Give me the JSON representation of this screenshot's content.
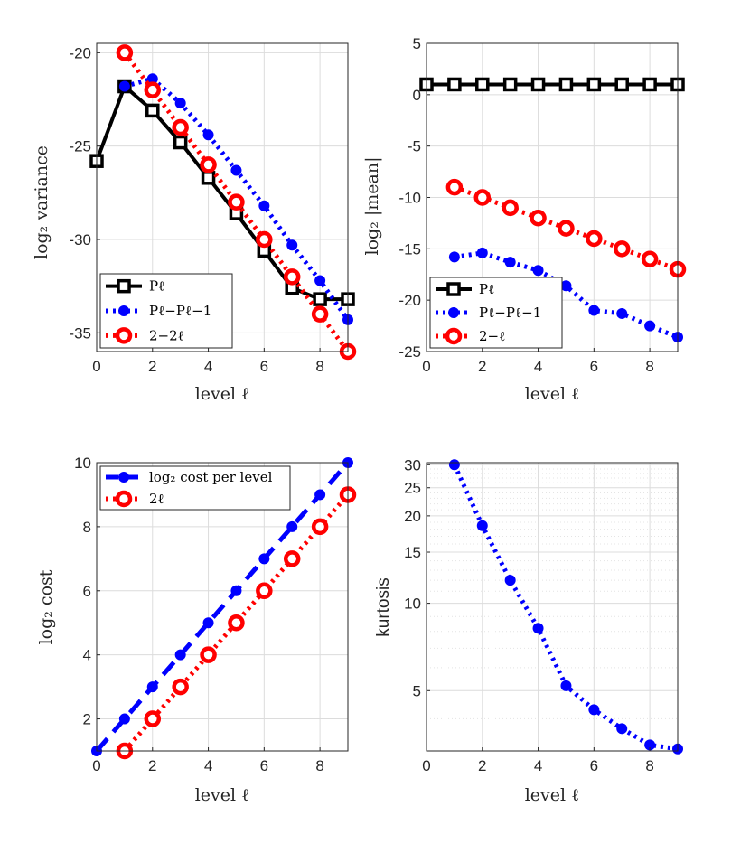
{
  "chart_data": [
    {
      "id": "variance",
      "type": "line",
      "xlabel": "level ℓ",
      "ylabel": "log₂ variance",
      "xlim": [
        0,
        9
      ],
      "ylim": [
        -36,
        -19.5
      ],
      "xticks": [
        0,
        2,
        4,
        6,
        8
      ],
      "yticks": [
        -35,
        -30,
        -25,
        -20
      ],
      "ytick_labels": [
        "-35",
        "-30",
        "-25",
        "-20"
      ],
      "legend_loc": "bottom-left",
      "series": [
        {
          "name": "P_ℓ",
          "legend": "Pℓ",
          "style": "solid",
          "marker": "square",
          "color": "#000000",
          "x": [
            0,
            1,
            2,
            3,
            4,
            5,
            6,
            7,
            8,
            9
          ],
          "y": [
            -25.8,
            -21.8,
            -23.1,
            -24.8,
            -26.7,
            -28.6,
            -30.6,
            -32.6,
            -33.2,
            -33.2
          ]
        },
        {
          "name": "P_ℓ − P_ℓ−1",
          "legend": "Pℓ−Pℓ−1",
          "style": "dotted",
          "marker": "circle",
          "color": "#0000ff",
          "x": [
            1,
            2,
            3,
            4,
            5,
            6,
            7,
            8,
            9
          ],
          "y": [
            -21.8,
            -21.4,
            -22.7,
            -24.4,
            -26.3,
            -28.2,
            -30.3,
            -32.2,
            -34.3
          ]
        },
        {
          "name": "2^(−2ℓ)",
          "legend": "2−2ℓ",
          "style": "dotted",
          "marker": "ring",
          "color": "#ff0000",
          "x": [
            1,
            2,
            3,
            4,
            5,
            6,
            7,
            8,
            9
          ],
          "y": [
            -20,
            -22,
            -24,
            -26,
            -28,
            -30,
            -32,
            -34,
            -36
          ]
        }
      ]
    },
    {
      "id": "mean",
      "type": "line",
      "xlabel": "level ℓ",
      "ylabel": "log₂ |mean|",
      "xlim": [
        0,
        9
      ],
      "ylim": [
        -25,
        5
      ],
      "xticks": [
        0,
        2,
        4,
        6,
        8
      ],
      "yticks": [
        -25,
        -20,
        -15,
        -10,
        -5,
        0,
        5
      ],
      "ytick_labels": [
        "-25",
        "-20",
        "-15",
        "-10",
        "-5",
        "0",
        "5"
      ],
      "legend_loc": "bottom-left",
      "series": [
        {
          "name": "P_ℓ",
          "legend": "Pℓ",
          "style": "solid",
          "marker": "square",
          "color": "#000000",
          "x": [
            0,
            1,
            2,
            3,
            4,
            5,
            6,
            7,
            8,
            9
          ],
          "y": [
            1,
            1,
            1,
            1,
            1,
            1,
            1,
            1,
            1,
            1
          ]
        },
        {
          "name": "P_ℓ − P_ℓ−1",
          "legend": "Pℓ−Pℓ−1",
          "style": "dotted",
          "marker": "circle",
          "color": "#0000ff",
          "x": [
            1,
            2,
            3,
            4,
            5,
            6,
            7,
            8,
            9
          ],
          "y": [
            -15.8,
            -15.4,
            -16.3,
            -17.1,
            -18.6,
            -21,
            -21.3,
            -22.5,
            -23.6
          ]
        },
        {
          "name": "2^(−ℓ)",
          "legend": "2−ℓ",
          "style": "dotted",
          "marker": "ring",
          "color": "#ff0000",
          "x": [
            1,
            2,
            3,
            4,
            5,
            6,
            7,
            8,
            9
          ],
          "y": [
            -9,
            -10,
            -11,
            -12,
            -13,
            -14,
            -15,
            -16,
            -17
          ]
        }
      ]
    },
    {
      "id": "cost",
      "type": "line",
      "xlabel": "level ℓ",
      "ylabel": "log₂ cost",
      "xlim": [
        0,
        9
      ],
      "ylim": [
        1,
        10
      ],
      "xticks": [
        0,
        2,
        4,
        6,
        8
      ],
      "yticks": [
        2,
        4,
        6,
        8,
        10
      ],
      "ytick_labels": [
        "2",
        "4",
        "6",
        "8",
        "10"
      ],
      "legend_loc": "top-left",
      "series": [
        {
          "name": "log₂ cost per level",
          "legend": "log₂ cost per level",
          "style": "dashed",
          "marker": "circle",
          "color": "#0000ff",
          "x": [
            0,
            1,
            2,
            3,
            4,
            5,
            6,
            7,
            8,
            9
          ],
          "y": [
            1,
            2,
            3,
            4,
            5,
            6,
            7,
            8,
            9,
            10
          ]
        },
        {
          "name": "2^ℓ",
          "legend": "2ℓ",
          "style": "dotted",
          "marker": "ring",
          "color": "#ff0000",
          "x": [
            1,
            2,
            3,
            4,
            5,
            6,
            7,
            8,
            9
          ],
          "y": [
            1,
            2,
            3,
            4,
            5,
            6,
            7,
            8,
            9
          ]
        }
      ]
    },
    {
      "id": "kurtosis",
      "type": "line",
      "xlabel": "level ℓ",
      "ylabel": "kurtosis",
      "xscale": "linear",
      "yscale": "log",
      "xlim": [
        0,
        9
      ],
      "ylim": [
        3.1,
        30.5
      ],
      "xticks": [
        0,
        2,
        4,
        6,
        8
      ],
      "yticks": [
        5,
        10,
        15,
        20,
        25,
        30
      ],
      "ytick_labels": [
        "5",
        "10",
        "15",
        "20",
        "25",
        "30"
      ],
      "legend_loc": "none",
      "series": [
        {
          "name": "kurtosis",
          "style": "dotted",
          "marker": "circle",
          "color": "#0000ff",
          "x": [
            1,
            2,
            3,
            4,
            5,
            6,
            7,
            8,
            9
          ],
          "y": [
            30,
            18.5,
            12,
            8.2,
            5.2,
            4.3,
            3.7,
            3.25,
            3.15
          ]
        }
      ]
    }
  ]
}
